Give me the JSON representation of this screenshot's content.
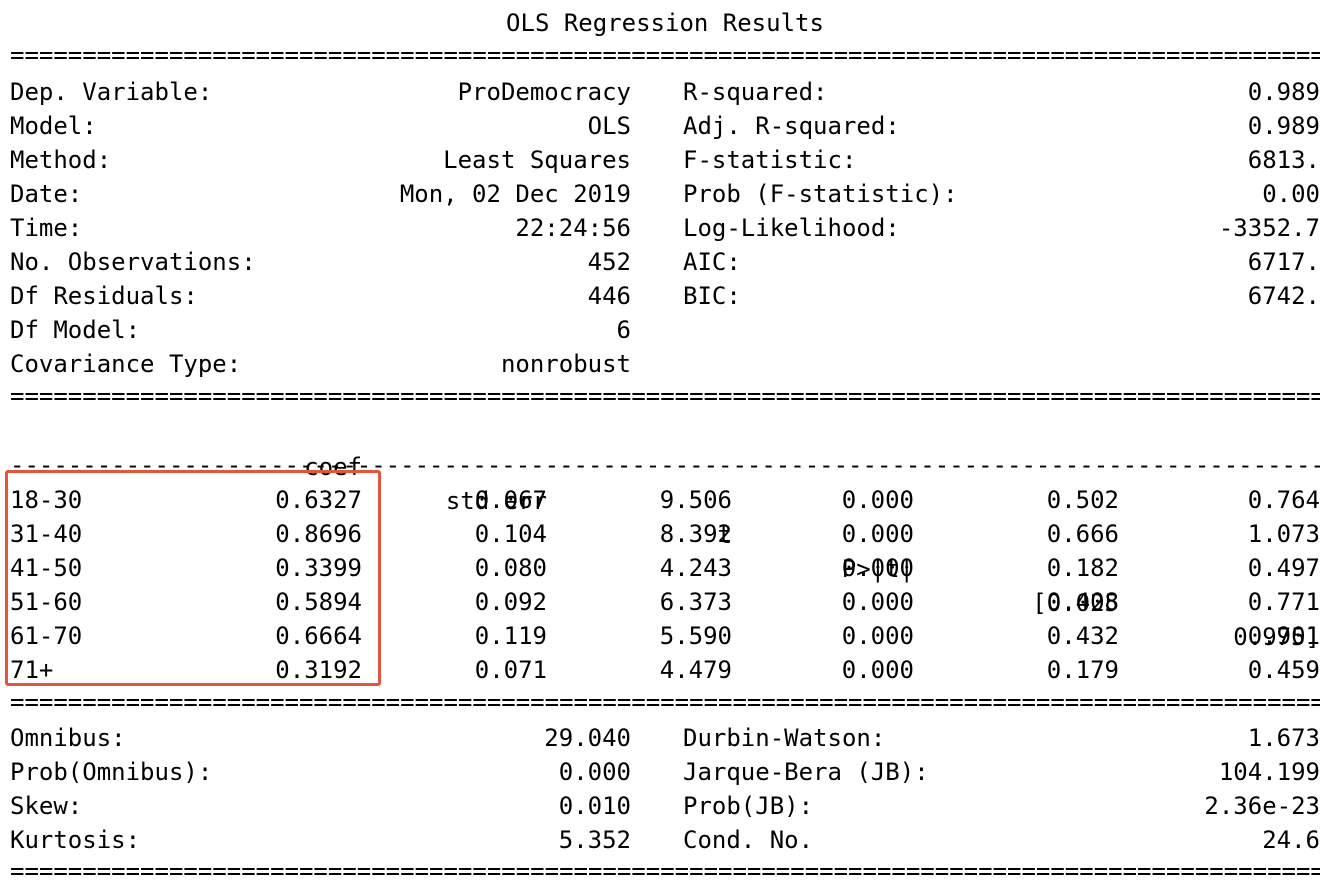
{
  "title": "OLS Regression Results",
  "rules": {
    "double": "=========================================================================================================",
    "single": "---------------------------------------------------------------------------------------------------------"
  },
  "header_rows": [
    {
      "left_label": "Dep. Variable:",
      "left_value": "ProDemocracy",
      "right_label": "R-squared:",
      "right_value": "0.989"
    },
    {
      "left_label": "Model:",
      "left_value": "OLS",
      "right_label": "Adj. R-squared:",
      "right_value": "0.989"
    },
    {
      "left_label": "Method:",
      "left_value": "Least Squares",
      "right_label": "F-statistic:",
      "right_value": "6813."
    },
    {
      "left_label": "Date:",
      "left_value": "Mon, 02 Dec 2019",
      "right_label": "Prob (F-statistic):",
      "right_value": "0.00"
    },
    {
      "left_label": "Time:",
      "left_value": "22:24:56",
      "right_label": "Log-Likelihood:",
      "right_value": "-3352.7"
    },
    {
      "left_label": "No. Observations:",
      "left_value": "452",
      "right_label": "AIC:",
      "right_value": "6717."
    },
    {
      "left_label": "Df Residuals:",
      "left_value": "446",
      "right_label": "BIC:",
      "right_value": "6742."
    },
    {
      "left_label": "Df Model:",
      "left_value": "6",
      "right_label": "",
      "right_value": ""
    },
    {
      "left_label": "Covariance Type:",
      "left_value": "nonrobust",
      "right_label": "",
      "right_value": ""
    }
  ],
  "coef_table": {
    "columns": [
      "coef",
      "std err",
      "t",
      "P>|t|",
      "[0.025",
      "0.975]"
    ],
    "rows": [
      {
        "name": "18-30",
        "values": [
          "0.6327",
          "0.067",
          "9.506",
          "0.000",
          "0.502",
          "0.764"
        ]
      },
      {
        "name": "31-40",
        "values": [
          "0.8696",
          "0.104",
          "8.392",
          "0.000",
          "0.666",
          "1.073"
        ]
      },
      {
        "name": "41-50",
        "values": [
          "0.3399",
          "0.080",
          "4.243",
          "0.000",
          "0.182",
          "0.497"
        ]
      },
      {
        "name": "51-60",
        "values": [
          "0.5894",
          "0.092",
          "6.373",
          "0.000",
          "0.408",
          "0.771"
        ]
      },
      {
        "name": "61-70",
        "values": [
          "0.6664",
          "0.119",
          "5.590",
          "0.000",
          "0.432",
          "0.901"
        ]
      },
      {
        "name": "71+",
        "values": [
          "0.3192",
          "0.071",
          "4.479",
          "0.000",
          "0.179",
          "0.459"
        ]
      }
    ]
  },
  "footer_rows": [
    {
      "left_label": "Omnibus:",
      "left_value": "29.040",
      "right_label": "Durbin-Watson:",
      "right_value": "1.673"
    },
    {
      "left_label": "Prob(Omnibus):",
      "left_value": "0.000",
      "right_label": "Jarque-Bera (JB):",
      "right_value": "104.199"
    },
    {
      "left_label": "Skew:",
      "left_value": "0.010",
      "right_label": "Prob(JB):",
      "right_value": "2.36e-23"
    },
    {
      "left_label": "Kurtosis:",
      "left_value": "5.352",
      "right_label": "Cond. No.",
      "right_value": "24.6"
    }
  ],
  "colors": {
    "highlight_border": "#e4553d",
    "text": "#000000",
    "background": "#ffffff"
  }
}
